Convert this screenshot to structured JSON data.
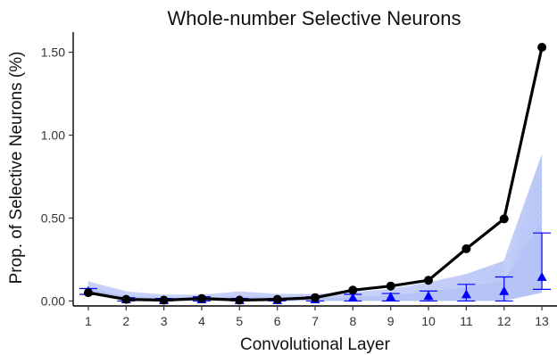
{
  "chart_data": {
    "type": "line",
    "title": "Whole-number Selective Neurons",
    "xlabel": "Convolutional Layer",
    "ylabel": "Prop. of Selective Neurons (%)",
    "x": [
      1,
      2,
      3,
      4,
      5,
      6,
      7,
      8,
      9,
      10,
      11,
      12,
      13
    ],
    "x_tick_labels": [
      "1",
      "2",
      "3",
      "4",
      "5",
      "6",
      "7",
      "8",
      "9",
      "10",
      "11",
      "12",
      "13"
    ],
    "y_ticks": [
      0.0,
      0.5,
      1.0,
      1.5
    ],
    "y_tick_labels": [
      "0.00",
      "0.50",
      "1.00",
      "1.50"
    ],
    "xlim": [
      0.6,
      13.4
    ],
    "ylim": [
      -0.03,
      1.6
    ],
    "grid": false,
    "legend": "none",
    "series": [
      {
        "style": "line-points",
        "color": "#000000",
        "values": [
          0.05,
          0.01,
          0.005,
          0.015,
          0.005,
          0.01,
          0.02,
          0.065,
          0.09,
          0.125,
          0.315,
          0.495,
          1.53
        ]
      },
      {
        "style": "triangles-with-error-bars",
        "color": "#0000ff",
        "values": [
          0.06,
          0.01,
          0.005,
          0.01,
          0.005,
          0.005,
          0.01,
          0.02,
          0.025,
          0.03,
          0.04,
          0.06,
          0.145
        ],
        "error_low": [
          0.04,
          0.0,
          0.0,
          0.0,
          0.0,
          0.0,
          0.0,
          0.0,
          0.0,
          0.0,
          0.0,
          0.0,
          0.07
        ],
        "error_high": [
          0.075,
          0.02,
          0.015,
          0.025,
          0.015,
          0.015,
          0.025,
          0.04,
          0.045,
          0.06,
          0.1,
          0.145,
          0.41
        ]
      },
      {
        "style": "permutation-band",
        "color": "#a9b8f5",
        "low": [
          0.04,
          0.0,
          0.0,
          0.0,
          0.0,
          0.0,
          0.0,
          0.0,
          0.0,
          0.0,
          0.0,
          0.0,
          0.05
        ],
        "high": [
          0.115,
          0.055,
          0.035,
          0.035,
          0.055,
          0.04,
          0.04,
          0.05,
          0.07,
          0.11,
          0.16,
          0.24,
          0.88
        ]
      }
    ]
  }
}
